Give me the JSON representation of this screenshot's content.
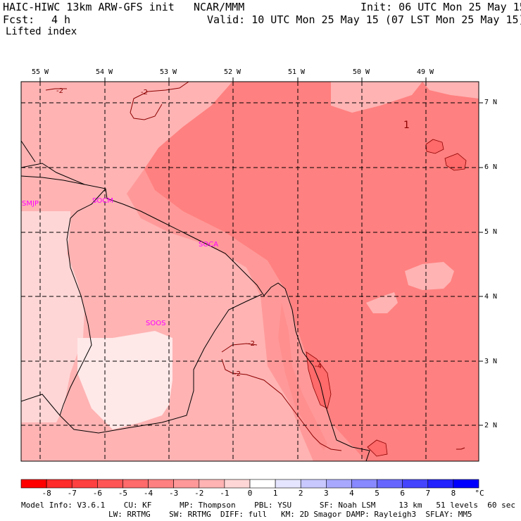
{
  "header": {
    "model": "HAIC-HIWC 13km ARW-GFS init",
    "org": "NCAR/MMM",
    "init": "Init: 06 UTC Mon 25 May 15",
    "fcst_label": "Fcst:",
    "fcst_value": "4 h",
    "valid": "Valid: 10 UTC Mon 25 May 15 (07 LST Mon 25 May 15)",
    "field": "Lifted index"
  },
  "map": {
    "lon_labels": [
      "55 W",
      "54 W",
      "53 W",
      "52 W",
      "51 W",
      "50 W",
      "49 W"
    ],
    "lat_labels": [
      "7 N",
      "6 N",
      "5 N",
      "4 N",
      "3 N",
      "2 N"
    ],
    "stations": [
      "SMJP",
      "SOCM",
      "SOCA",
      "SOOS"
    ],
    "contour_labels": [
      "-2",
      "-2",
      "-2",
      "-2",
      "-4",
      "1"
    ]
  },
  "colorbar": {
    "levels": [
      "-8",
      "-7",
      "-6",
      "-5",
      "-4",
      "-3",
      "-2",
      "-1",
      "0",
      "1",
      "2",
      "3",
      "4",
      "5",
      "6",
      "7",
      "8"
    ],
    "unit": "°C",
    "colors": [
      "#ff0000",
      "#ff2a2a",
      "#ff4040",
      "#ff5555",
      "#ff6a6a",
      "#ff8080",
      "#ff9999",
      "#ffb3b3",
      "#ffd6d6",
      "#ffffff",
      "#e5e5ff",
      "#c8c8ff",
      "#a8a8ff",
      "#8888ff",
      "#6666ff",
      "#4444ff",
      "#2222ff",
      "#0000ff"
    ]
  },
  "footer": {
    "line1": "Model Info: V3.6.1    CU: KF      MP: Thompson    PBL: YSU      SF: Noah LSM     13 km   51 levels  60 sec",
    "line2": "LW: RRTMG    SW: RRTMG  DIFF: full   KM: 2D Smagor DAMP: Rayleigh3  SFLAY: MM5"
  }
}
